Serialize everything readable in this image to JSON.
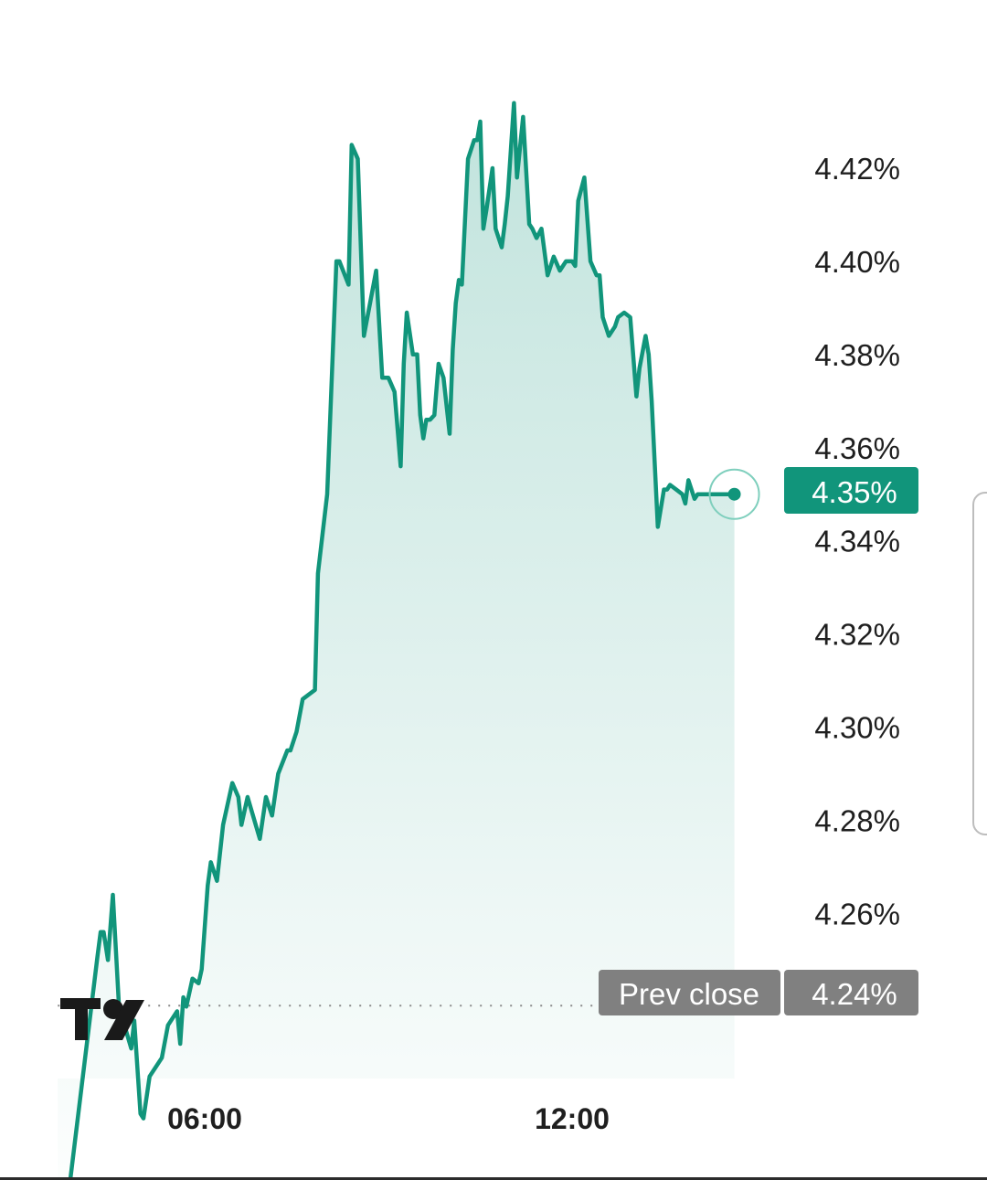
{
  "chart_data": {
    "type": "area",
    "title": "",
    "xlabel": "",
    "ylabel": "",
    "ylim": [
      4.2,
      4.42
    ],
    "y_ticks": [
      "4.42%",
      "4.40%",
      "4.38%",
      "4.36%",
      "4.34%",
      "4.32%",
      "4.30%",
      "4.28%",
      "4.26%"
    ],
    "y_tick_values": [
      4.42,
      4.4,
      4.38,
      4.36,
      4.34,
      4.32,
      4.3,
      4.28,
      4.26
    ],
    "x_ticks": [
      "06:00",
      "12:00"
    ],
    "x_tick_values": [
      6,
      12
    ],
    "series": [
      {
        "x": [
          3.6,
          3.7,
          3.75,
          4.25,
          4.3,
          4.35,
          4.42,
          4.5,
          4.6,
          4.8,
          4.85,
          4.95,
          5.0,
          5.1,
          5.2,
          5.3,
          5.4,
          5.55,
          5.6,
          5.65,
          5.7,
          5.8,
          5.9,
          5.95,
          6.05,
          6.1,
          6.2,
          6.3,
          6.45,
          6.55,
          6.6,
          6.7,
          6.9,
          7.0,
          7.1,
          7.2,
          7.35,
          7.4,
          7.5,
          7.6,
          7.8,
          7.85,
          8.0,
          8.15,
          8.2,
          8.35,
          8.4,
          8.5,
          8.6,
          8.8,
          8.9,
          9.0,
          9.1,
          9.2,
          9.25,
          9.3,
          9.4,
          9.47,
          9.52,
          9.57,
          9.62,
          9.68,
          9.75,
          9.82,
          9.9,
          10.0,
          10.05,
          10.1,
          10.15,
          10.2,
          10.3,
          10.4,
          10.45,
          10.5,
          10.55,
          10.6,
          10.7,
          10.75,
          10.85,
          10.9,
          10.95,
          11.0,
          11.05,
          11.1,
          11.2,
          11.3,
          11.35,
          11.42,
          11.5,
          11.6,
          11.7,
          11.8,
          11.9,
          12.0,
          12.05,
          12.1,
          12.2,
          12.3,
          12.4,
          12.45,
          12.5,
          12.6,
          12.7,
          12.75,
          12.85,
          12.95,
          13.05,
          13.1,
          13.2,
          13.25,
          13.3,
          13.4,
          13.5,
          13.55,
          13.6,
          13.7,
          13.8,
          13.85,
          13.9,
          14.0,
          14.05,
          14.1,
          14.15,
          14.2,
          14.25,
          14.3,
          14.4,
          14.45,
          14.5,
          14.55,
          14.6,
          14.65
        ],
        "values": [
          4.192,
          4.194,
          4.197,
          4.251,
          4.256,
          4.256,
          4.25,
          4.264,
          4.24,
          4.231,
          4.237,
          4.217,
          4.216,
          4.225,
          4.227,
          4.229,
          4.236,
          4.239,
          4.232,
          4.242,
          4.24,
          4.246,
          4.245,
          4.248,
          4.266,
          4.271,
          4.267,
          4.279,
          4.288,
          4.285,
          4.279,
          4.285,
          4.276,
          4.285,
          4.281,
          4.29,
          4.295,
          4.295,
          4.299,
          4.306,
          4.308,
          4.333,
          4.35,
          4.4,
          4.4,
          4.395,
          4.425,
          4.422,
          4.384,
          4.398,
          4.375,
          4.375,
          4.372,
          4.356,
          4.378,
          4.389,
          4.38,
          4.38,
          4.367,
          4.362,
          4.366,
          4.366,
          4.367,
          4.378,
          4.375,
          4.363,
          4.381,
          4.391,
          4.396,
          4.395,
          4.422,
          4.426,
          4.426,
          4.43,
          4.407,
          4.411,
          4.42,
          4.407,
          4.403,
          4.408,
          4.414,
          4.424,
          4.434,
          4.418,
          4.431,
          4.408,
          4.407,
          4.405,
          4.407,
          4.397,
          4.401,
          4.398,
          4.4,
          4.4,
          4.399,
          4.413,
          4.418,
          4.4,
          4.397,
          4.397,
          4.388,
          4.384,
          4.386,
          4.388,
          4.389,
          4.388,
          4.371,
          4.377,
          4.384,
          4.38,
          4.37,
          4.343,
          4.351,
          4.351,
          4.352,
          4.351,
          4.35,
          4.348,
          4.353,
          4.349,
          4.35,
          4.35,
          4.35,
          4.35,
          4.35,
          4.35,
          4.35,
          4.35,
          4.35,
          4.35,
          4.35,
          4.35
        ]
      }
    ],
    "last_value": 4.35,
    "last_value_label": "4.35%",
    "prev_close": 4.24,
    "prev_close_label_text": "Prev close",
    "prev_close_value_label": "4.24%",
    "colors": {
      "line": "#11957b",
      "fill": "#11957b",
      "last_label_bg": "#11957b",
      "prev_close_bg": "#808080",
      "text": "#1f1f1f"
    },
    "grid": false,
    "legend": "none",
    "logo": "tradingview-logo"
  }
}
